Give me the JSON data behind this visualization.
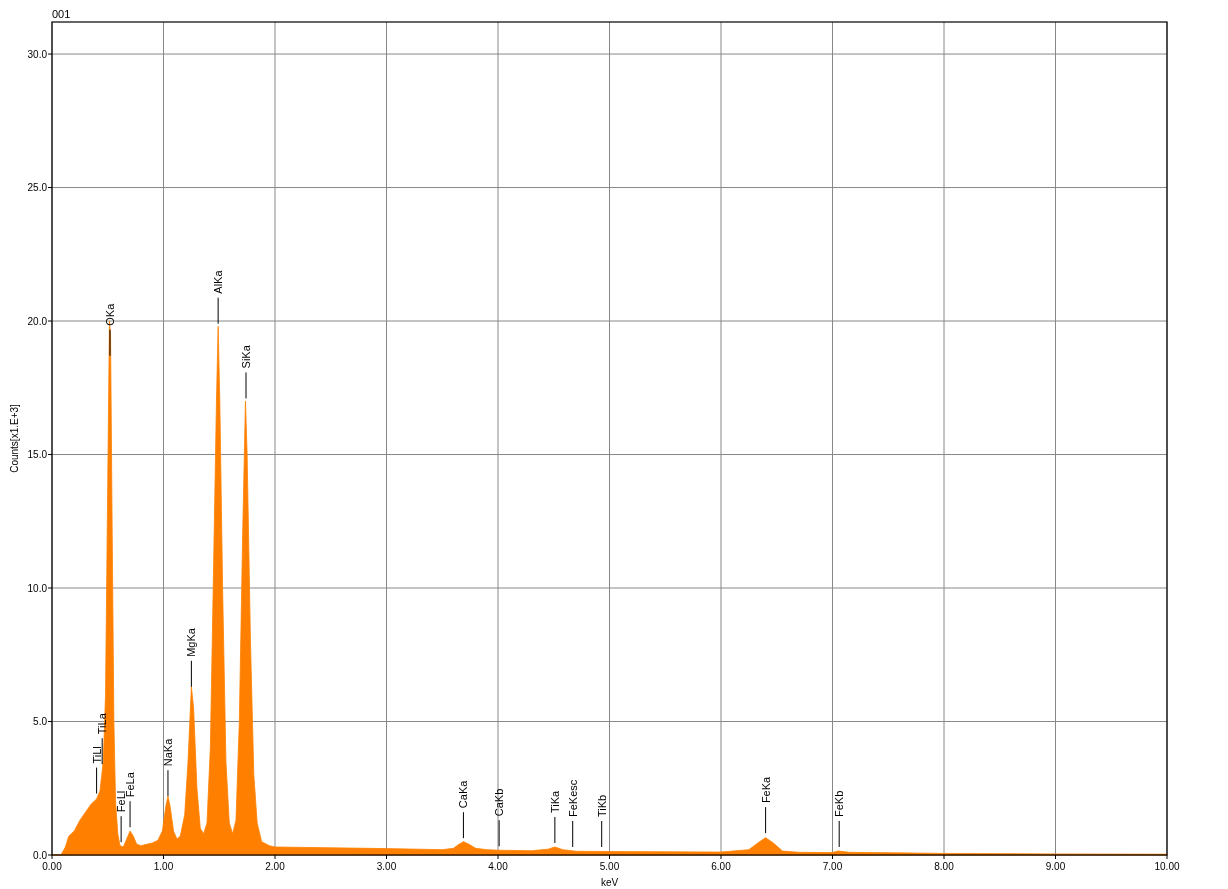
{
  "chart_data": {
    "type": "area",
    "title": "001",
    "xlabel": "keV",
    "ylabel": "Counts[x1.E+3]",
    "x": [
      0,
      0.08,
      0.12,
      0.15,
      0.2,
      0.25,
      0.3,
      0.35,
      0.4,
      0.43,
      0.46,
      0.48,
      0.5,
      0.515,
      0.525,
      0.54,
      0.555,
      0.57,
      0.59,
      0.61,
      0.64,
      0.67,
      0.7,
      0.73,
      0.76,
      0.8,
      0.85,
      0.9,
      0.95,
      0.99,
      1.02,
      1.04,
      1.06,
      1.09,
      1.12,
      1.15,
      1.19,
      1.22,
      1.25,
      1.27,
      1.3,
      1.33,
      1.36,
      1.39,
      1.42,
      1.45,
      1.475,
      1.49,
      1.505,
      1.53,
      1.56,
      1.59,
      1.62,
      1.65,
      1.68,
      1.71,
      1.735,
      1.75,
      1.78,
      1.81,
      1.84,
      1.88,
      1.95,
      2,
      2.5,
      3,
      3.5,
      3.6,
      3.65,
      3.69,
      3.74,
      3.8,
      3.9,
      4,
      4.3,
      4.45,
      4.51,
      4.58,
      4.7,
      5,
      5.5,
      6,
      6.25,
      6.33,
      6.4,
      6.47,
      6.55,
      6.7,
      7,
      7.05,
      7.15,
      7.6,
      8,
      9,
      10
    ],
    "series": [
      {
        "color": "#ff8000",
        "values": [
          0,
          0,
          0.3,
          0.7,
          0.9,
          1.3,
          1.6,
          1.9,
          2.1,
          2.4,
          3.5,
          6,
          14,
          20,
          19.5,
          12,
          5,
          2,
          0.8,
          0.35,
          0.3,
          0.6,
          0.9,
          0.7,
          0.4,
          0.35,
          0.4,
          0.45,
          0.55,
          0.9,
          1.8,
          2.2,
          1.8,
          0.9,
          0.6,
          0.7,
          1.5,
          3.5,
          6.3,
          5.5,
          2.5,
          1,
          0.8,
          1.2,
          4,
          11,
          17,
          19.8,
          17,
          10,
          3.5,
          1.2,
          0.8,
          1.3,
          5,
          12,
          17,
          15,
          8,
          3,
          1.2,
          0.5,
          0.35,
          0.3,
          0.27,
          0.24,
          0.2,
          0.25,
          0.4,
          0.5,
          0.4,
          0.25,
          0.2,
          0.18,
          0.16,
          0.22,
          0.3,
          0.2,
          0.14,
          0.13,
          0.12,
          0.11,
          0.2,
          0.45,
          0.65,
          0.45,
          0.15,
          0.1,
          0.09,
          0.15,
          0.1,
          0.08,
          0.06,
          0.04,
          0.03
        ]
      }
    ],
    "xlim": [
      0,
      10
    ],
    "ylim": [
      0,
      31.2
    ],
    "xticks": [
      {
        "value": 0,
        "label": "0.00"
      },
      {
        "value": 1,
        "label": "1.00"
      },
      {
        "value": 2,
        "label": "2.00"
      },
      {
        "value": 3,
        "label": "3.00"
      },
      {
        "value": 4,
        "label": "4.00"
      },
      {
        "value": 5,
        "label": "5.00"
      },
      {
        "value": 6,
        "label": "6.00"
      },
      {
        "value": 7,
        "label": "7.00"
      },
      {
        "value": 8,
        "label": "8.00"
      },
      {
        "value": 9,
        "label": "9.00"
      },
      {
        "value": 10,
        "label": "10.00"
      }
    ],
    "yticks": [
      {
        "value": 0,
        "label": "0.0"
      },
      {
        "value": 5,
        "label": "5.0"
      },
      {
        "value": 10,
        "label": "10.0"
      },
      {
        "value": 15,
        "label": "15.0"
      },
      {
        "value": 20,
        "label": "20.0"
      },
      {
        "value": 25,
        "label": "25.0"
      },
      {
        "value": 30,
        "label": "30.0"
      }
    ],
    "grid": true,
    "annotations": [
      {
        "text": "OKa",
        "x": 0.52,
        "y": 18.7
      },
      {
        "text": "TiLl",
        "x": 0.4,
        "y": 2.3
      },
      {
        "text": "TiLa",
        "x": 0.45,
        "y": 3.4
      },
      {
        "text": "FeLl",
        "x": 0.62,
        "y": 0.48
      },
      {
        "text": "FeLa",
        "x": 0.7,
        "y": 1.04
      },
      {
        "text": "NaKa",
        "x": 1.04,
        "y": 2.2
      },
      {
        "text": "MgKa",
        "x": 1.25,
        "y": 6.3
      },
      {
        "text": "AlKa",
        "x": 1.49,
        "y": 19.9
      },
      {
        "text": "SiKa",
        "x": 1.74,
        "y": 17.1
      },
      {
        "text": "CaKa",
        "x": 3.69,
        "y": 0.63
      },
      {
        "text": "CaKb",
        "x": 4.01,
        "y": 0.33
      },
      {
        "text": "TiKa",
        "x": 4.51,
        "y": 0.45
      },
      {
        "text": "FeKesc",
        "x": 4.67,
        "y": 0.3
      },
      {
        "text": "TiKb",
        "x": 4.93,
        "y": 0.3
      },
      {
        "text": "FeKa",
        "x": 6.4,
        "y": 0.82
      },
      {
        "text": "FeKb",
        "x": 7.06,
        "y": 0.3
      }
    ]
  }
}
